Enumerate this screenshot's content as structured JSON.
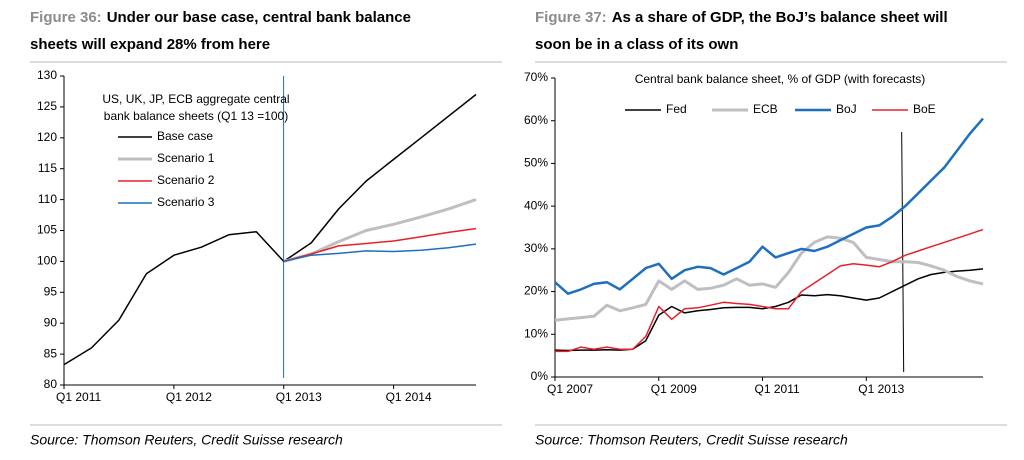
{
  "chart_data": [
    {
      "type": "line",
      "figure": "Figure 36:",
      "title": [
        "Under our base case, central bank balance",
        "sheets will expand 28% from here"
      ],
      "source": "Source: Thomson Reuters, Credit Suisse research",
      "legend_title": [
        "US, UK, JP, ECB aggregate central",
        "bank balance sheets (Q1 13 =100)"
      ],
      "categories": [
        "Q1 2011",
        null,
        null,
        null,
        "Q1 2012",
        null,
        null,
        null,
        "Q1 2013",
        null,
        null,
        null,
        "Q1 2014",
        null,
        null,
        null
      ],
      "series": [
        {
          "name": "Base case",
          "color": "#000000",
          "line_width": 1.5,
          "values": [
            83.3,
            86,
            90.5,
            98,
            101,
            102.3,
            104.3,
            104.8,
            100,
            103,
            108.5,
            113,
            116.5,
            120,
            123.5,
            127
          ]
        },
        {
          "name": "Scenario 1",
          "color": "#bfbfbf",
          "line_width": 3,
          "values": [
            null,
            null,
            null,
            null,
            null,
            null,
            null,
            null,
            100,
            101.2,
            103.2,
            105,
            106,
            107.2,
            108.5,
            110
          ]
        },
        {
          "name": "Scenario 2",
          "color": "#e8202a",
          "line_width": 1.5,
          "values": [
            null,
            null,
            null,
            null,
            null,
            null,
            null,
            null,
            100,
            101.2,
            102.5,
            102.9,
            103.3,
            104,
            104.7,
            105.3
          ]
        },
        {
          "name": "Scenario 3",
          "color": "#1f6fc0",
          "line_width": 1.5,
          "values": [
            null,
            null,
            null,
            null,
            null,
            null,
            null,
            null,
            100,
            101,
            101.3,
            101.7,
            101.6,
            101.8,
            102.2,
            102.8
          ]
        }
      ],
      "ylim": [
        80,
        130
      ],
      "yticks": [
        80,
        85,
        90,
        95,
        100,
        105,
        110,
        115,
        120,
        125,
        130
      ]
    },
    {
      "type": "line",
      "figure": "Figure 37:",
      "title": [
        "As a share of GDP, the BoJ’s balance sheet will",
        "soon be in a class of its own"
      ],
      "source": "Source: Thomson Reuters, Credit Suisse research",
      "subtitle": "Central bank balance sheet, % of GDP (with forecasts)",
      "categories": [
        "Q1 2007",
        null,
        null,
        null,
        null,
        null,
        null,
        null,
        "Q1 2009",
        null,
        null,
        null,
        null,
        null,
        null,
        null,
        "Q1 2011",
        null,
        null,
        null,
        null,
        null,
        null,
        null,
        "Q1 2013",
        null,
        null,
        null,
        null,
        null,
        null,
        null,
        null,
        null
      ],
      "series": [
        {
          "name": "Fed",
          "color": "#000000",
          "line_width": 1.5,
          "values": [
            6.3,
            6.2,
            6.3,
            6.3,
            6.4,
            6.3,
            6.5,
            8.5,
            14.5,
            16.5,
            15,
            15.5,
            15.8,
            16.2,
            16.3,
            16.3,
            16,
            16.5,
            17.5,
            19.2,
            19,
            19.3,
            19,
            18.5,
            18,
            18.5,
            20,
            21.5,
            23,
            24,
            24.5,
            24.8,
            25,
            25.3
          ]
        },
        {
          "name": "ECB",
          "color": "#bfbfbf",
          "line_width": 3,
          "values": [
            13.3,
            13.6,
            13.9,
            14.2,
            16.8,
            15.5,
            16.2,
            17,
            22.5,
            20.5,
            22.5,
            20.5,
            20.8,
            21.5,
            23,
            21.5,
            21.8,
            21,
            24.5,
            29,
            31.5,
            32.8,
            32.5,
            31.5,
            28,
            27.5,
            27,
            27,
            26.8,
            26,
            25,
            23.5,
            22.5,
            21.8
          ]
        },
        {
          "name": "BoJ",
          "color": "#1f6fc0",
          "line_width": 2.5,
          "values": [
            22.2,
            19.5,
            20.5,
            21.8,
            22.2,
            20.5,
            23,
            25.5,
            26.5,
            23,
            25,
            25.8,
            25.5,
            24,
            25.5,
            27,
            30.5,
            28,
            29,
            30,
            29.5,
            30.5,
            32,
            33.5,
            35,
            35.5,
            37.5,
            40,
            43,
            46,
            49,
            53,
            57,
            60.5
          ]
        },
        {
          "name": "BoE",
          "color": "#e8202a",
          "line_width": 1.5,
          "values": [
            6,
            6,
            7,
            6.5,
            7,
            6.5,
            6.5,
            9.5,
            16.5,
            13.5,
            16,
            16.2,
            16.8,
            17.5,
            17.2,
            17,
            16.5,
            16,
            16,
            20,
            22,
            24,
            26,
            26.5,
            26.2,
            25.8,
            27,
            28.5,
            29.5,
            30.5,
            31.5,
            32.5,
            33.5,
            34.5
          ]
        }
      ],
      "ylim": [
        0,
        70
      ],
      "yticks": [
        {
          "value": 0,
          "label": "0%"
        },
        {
          "value": 10,
          "label": "10%"
        },
        {
          "value": 20,
          "label": "20%"
        },
        {
          "value": 30,
          "label": "30%"
        },
        {
          "value": 40,
          "label": "40%"
        },
        {
          "value": 50,
          "label": "50%"
        },
        {
          "value": 60,
          "label": "60%"
        },
        {
          "value": 70,
          "label": "70%"
        }
      ]
    }
  ]
}
